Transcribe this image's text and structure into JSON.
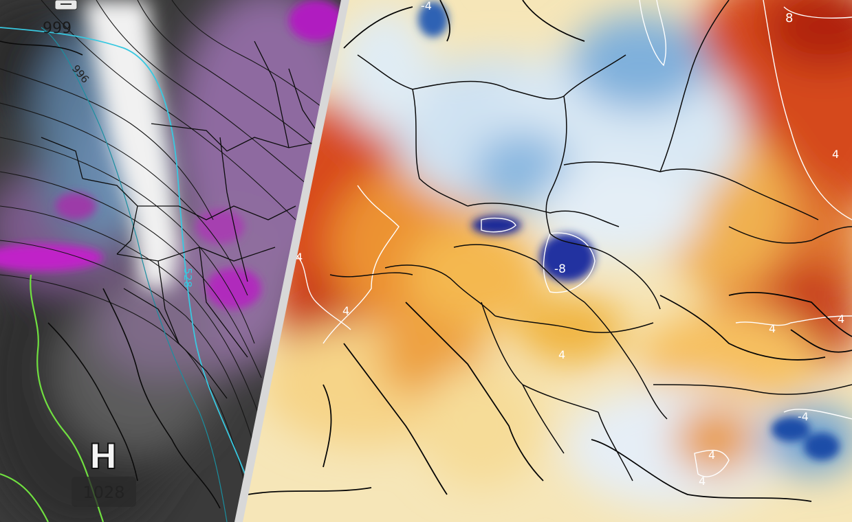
{
  "left_panel": {
    "pressure_labels": [
      {
        "id": "pressure-label-999",
        "text": "999"
      },
      {
        "id": "pressure-label-996",
        "text": "996"
      },
      {
        "id": "pressure-label-1028",
        "text": "1028"
      }
    ],
    "high_marker": "H",
    "contour_label": "528"
  },
  "right_panel": {
    "anomaly_labels": [
      {
        "id": "anomaly-label-8-ne",
        "text": "8"
      },
      {
        "id": "anomaly-label-4-n",
        "text": "-4"
      },
      {
        "id": "anomaly-label-4-e",
        "text": "4"
      },
      {
        "id": "anomaly-label-4-e2",
        "text": "4"
      },
      {
        "id": "anomaly-label-8-carpathian",
        "text": "-8"
      },
      {
        "id": "anomaly-label-4-w",
        "text": "4"
      },
      {
        "id": "anomaly-label-4-alps",
        "text": "4"
      },
      {
        "id": "anomaly-label-4-blacksea",
        "text": "4"
      },
      {
        "id": "anomaly-label-4-balkan",
        "text": "4"
      },
      {
        "id": "anomaly-label-4-turkey-n",
        "text": "-4"
      },
      {
        "id": "anomaly-label-4-turkey",
        "text": "4"
      },
      {
        "id": "anomaly-label-4-turkey2",
        "text": "4"
      }
    ]
  },
  "colors": {
    "divider": "#d8d8d8",
    "land_dark": "#3a3a3a",
    "precip_purple": "#9a6aa8",
    "precip_magenta": "#c020c8",
    "snow_white": "#f2f2f2",
    "contour_cyan": "#38c8e0",
    "contour_green": "#70e040",
    "warm_red": "#d8401a",
    "warm_orange": "#f0a030",
    "warm_yellow": "#f8dc90",
    "cold_light": "#d8e8f4",
    "cold_blue": "#5a98d0",
    "cold_deep": "#2030a0"
  }
}
